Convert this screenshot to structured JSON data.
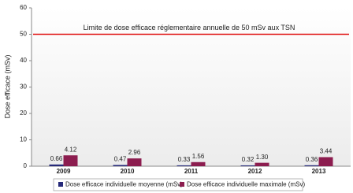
{
  "chart_data": {
    "type": "bar",
    "y_label": "Dose efficace (mSv)",
    "categories": [
      "2009",
      "2010",
      "2011",
      "2012",
      "2013"
    ],
    "series": [
      {
        "name": "Dose efficace individuelle moyenne (mSv)",
        "color": "#262a7a",
        "values": [
          0.66,
          0.47,
          0.33,
          0.32,
          0.36
        ],
        "value_labels": [
          "0.66",
          "0.47",
          "0.33",
          "0.32",
          "0.36"
        ]
      },
      {
        "name": "Dose efficace individuelle maximale (mSv)",
        "color": "#8c1d4f",
        "values": [
          4.12,
          2.96,
          1.56,
          1.3,
          3.44
        ],
        "value_labels": [
          "4.12",
          "2.96",
          "1.56",
          "1.30",
          "3.44"
        ]
      }
    ],
    "ylim": [
      0,
      60
    ],
    "yticks": [
      0,
      10,
      20,
      30,
      40,
      50,
      60
    ],
    "reference_line": {
      "value": 50,
      "label": "Limite de dose efficace réglementaire annuelle de 50 mSv aux TSN",
      "color": "#e01010"
    }
  }
}
